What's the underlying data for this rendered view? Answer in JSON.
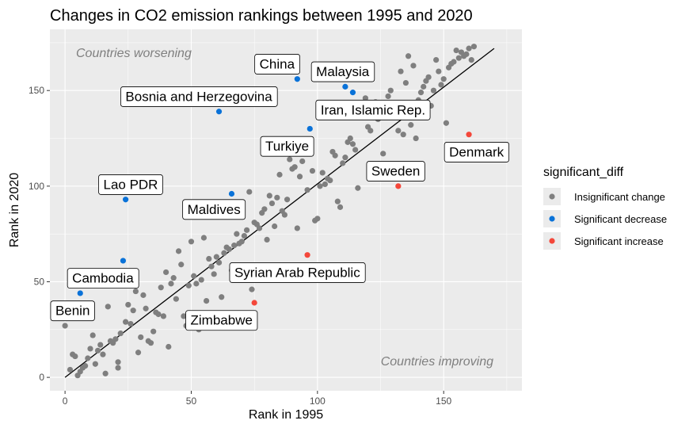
{
  "chart_data": {
    "type": "scatter",
    "title": "Changes in CO2 emission rankings between 1995 and 2020",
    "xlabel": "Rank in 1995",
    "ylabel": "Rank in 2020",
    "xlim": [
      -6,
      181
    ],
    "ylim": [
      -7,
      182
    ],
    "x_ticks": [
      0,
      50,
      100,
      150
    ],
    "y_ticks": [
      0,
      50,
      100,
      150
    ],
    "grid": true,
    "legend": {
      "title": "significant_diff",
      "position": "right",
      "entries": [
        {
          "label": "Insignificant change",
          "color": "#7f7f7f"
        },
        {
          "label": "Significant decrease",
          "color": "#0a72d8"
        },
        {
          "label": "Significant increase",
          "color": "#f4473a"
        }
      ]
    },
    "reference_line": {
      "from": [
        0,
        0
      ],
      "to": [
        170,
        172
      ],
      "color": "#000000"
    },
    "corner_labels": {
      "top_left": "Countries worsening",
      "bottom_right": "Countries improving"
    },
    "series": [
      {
        "name": "Insignificant change",
        "color": "#7f7f7f",
        "points": [
          [
            0,
            27
          ],
          [
            2,
            4
          ],
          [
            3,
            12
          ],
          [
            4,
            11
          ],
          [
            5,
            1
          ],
          [
            6,
            3
          ],
          [
            7,
            5
          ],
          [
            8,
            6
          ],
          [
            9,
            10
          ],
          [
            10,
            15
          ],
          [
            11,
            22
          ],
          [
            12,
            7
          ],
          [
            13,
            14
          ],
          [
            14,
            17
          ],
          [
            15,
            12
          ],
          [
            16,
            2
          ],
          [
            17,
            37
          ],
          [
            18,
            19
          ],
          [
            19,
            18
          ],
          [
            20,
            20
          ],
          [
            21,
            5
          ],
          [
            21,
            8
          ],
          [
            22,
            23
          ],
          [
            24,
            29
          ],
          [
            25,
            38
          ],
          [
            26,
            28
          ],
          [
            27,
            35
          ],
          [
            28,
            45
          ],
          [
            29,
            13
          ],
          [
            30,
            21
          ],
          [
            31,
            43
          ],
          [
            32,
            36
          ],
          [
            33,
            19
          ],
          [
            34,
            18
          ],
          [
            35,
            24
          ],
          [
            36,
            34
          ],
          [
            37,
            33
          ],
          [
            38,
            47
          ],
          [
            39,
            32
          ],
          [
            40,
            55
          ],
          [
            41,
            16
          ],
          [
            42,
            49
          ],
          [
            43,
            52
          ],
          [
            44,
            41
          ],
          [
            45,
            66
          ],
          [
            46,
            59
          ],
          [
            47,
            32
          ],
          [
            48,
            27
          ],
          [
            49,
            48
          ],
          [
            50,
            71
          ],
          [
            51,
            53
          ],
          [
            52,
            49
          ],
          [
            53,
            25
          ],
          [
            54,
            51
          ],
          [
            55,
            73
          ],
          [
            56,
            40
          ],
          [
            57,
            62
          ],
          [
            58,
            58
          ],
          [
            59,
            54
          ],
          [
            60,
            63
          ],
          [
            61,
            60
          ],
          [
            62,
            42
          ],
          [
            63,
            65
          ],
          [
            64,
            68
          ],
          [
            65,
            67
          ],
          [
            66,
            56
          ],
          [
            67,
            69
          ],
          [
            68,
            75
          ],
          [
            69,
            70
          ],
          [
            70,
            71
          ],
          [
            71,
            74
          ],
          [
            72,
            77
          ],
          [
            73,
            97
          ],
          [
            74,
            46
          ],
          [
            75,
            81
          ],
          [
            76,
            80
          ],
          [
            77,
            78
          ],
          [
            78,
            86
          ],
          [
            79,
            88
          ],
          [
            80,
            72
          ],
          [
            81,
            95
          ],
          [
            82,
            91
          ],
          [
            83,
            79
          ],
          [
            84,
            94
          ],
          [
            85,
            106
          ],
          [
            86,
            87
          ],
          [
            87,
            85
          ],
          [
            88,
            93
          ],
          [
            89,
            114
          ],
          [
            90,
            109
          ],
          [
            91,
            110
          ],
          [
            92,
            78
          ],
          [
            93,
            105
          ],
          [
            94,
            113
          ],
          [
            95,
            120
          ],
          [
            96,
            98
          ],
          [
            97,
            121
          ],
          [
            98,
            108
          ],
          [
            99,
            82
          ],
          [
            100,
            83
          ],
          [
            101,
            100
          ],
          [
            102,
            107
          ],
          [
            103,
            101
          ],
          [
            104,
            104
          ],
          [
            105,
            103
          ],
          [
            106,
            118
          ],
          [
            107,
            116
          ],
          [
            108,
            92
          ],
          [
            109,
            89
          ],
          [
            110,
            112
          ],
          [
            111,
            115
          ],
          [
            112,
            123
          ],
          [
            113,
            125
          ],
          [
            114,
            122
          ],
          [
            115,
            119
          ],
          [
            116,
            99
          ],
          [
            117,
            158
          ],
          [
            118,
            141
          ],
          [
            119,
            146
          ],
          [
            120,
            131
          ],
          [
            121,
            129
          ],
          [
            122,
            139
          ],
          [
            123,
            144
          ],
          [
            124,
            135
          ],
          [
            125,
            138
          ],
          [
            126,
            117
          ],
          [
            127,
            143
          ],
          [
            128,
            147
          ],
          [
            129,
            150
          ],
          [
            130,
            140
          ],
          [
            131,
            136
          ],
          [
            132,
            129
          ],
          [
            133,
            160
          ],
          [
            134,
            127
          ],
          [
            135,
            154
          ],
          [
            136,
            168
          ],
          [
            137,
            132
          ],
          [
            138,
            163
          ],
          [
            139,
            125
          ],
          [
            140,
            145
          ],
          [
            141,
            149
          ],
          [
            142,
            152
          ],
          [
            143,
            155
          ],
          [
            144,
            157
          ],
          [
            145,
            142
          ],
          [
            146,
            150
          ],
          [
            147,
            166
          ],
          [
            148,
            160
          ],
          [
            149,
            153
          ],
          [
            150,
            156
          ],
          [
            151,
            133
          ],
          [
            152,
            162
          ],
          [
            153,
            164
          ],
          [
            154,
            165
          ],
          [
            155,
            171
          ],
          [
            156,
            167
          ],
          [
            157,
            170
          ],
          [
            158,
            168
          ],
          [
            159,
            169
          ],
          [
            160,
            172
          ],
          [
            161,
            166
          ],
          [
            162,
            173
          ]
        ]
      },
      {
        "name": "Significant decrease",
        "color": "#0a72d8",
        "points": [
          [
            6,
            44
          ],
          [
            23,
            61
          ],
          [
            24,
            93
          ],
          [
            61,
            139
          ],
          [
            66,
            96
          ],
          [
            92,
            156
          ],
          [
            97,
            130
          ],
          [
            111,
            152
          ],
          [
            114,
            149
          ]
        ]
      },
      {
        "name": "Significant increase",
        "color": "#f4473a",
        "points": [
          [
            75,
            39
          ],
          [
            96,
            64
          ],
          [
            132,
            100
          ],
          [
            160,
            127
          ]
        ]
      }
    ],
    "annotations": [
      {
        "text": "China",
        "x": 84,
        "y": 164
      },
      {
        "text": "Malaysia",
        "x": 110,
        "y": 160
      },
      {
        "text": "Bosnia and Herzegovina",
        "x": 53,
        "y": 147
      },
      {
        "text": "Iran, Islamic Rep.",
        "x": 122,
        "y": 140
      },
      {
        "text": "Turkiye",
        "x": 88,
        "y": 121
      },
      {
        "text": "Denmark",
        "x": 163,
        "y": 118
      },
      {
        "text": "Sweden",
        "x": 131,
        "y": 108
      },
      {
        "text": "Lao PDR",
        "x": 26,
        "y": 101
      },
      {
        "text": "Maldives",
        "x": 59,
        "y": 88
      },
      {
        "text": "Syrian Arab Republic",
        "x": 92,
        "y": 55
      },
      {
        "text": "Cambodia",
        "x": 15,
        "y": 52
      },
      {
        "text": "Benin",
        "x": 3,
        "y": 35
      },
      {
        "text": "Zimbabwe",
        "x": 62,
        "y": 30
      }
    ]
  }
}
